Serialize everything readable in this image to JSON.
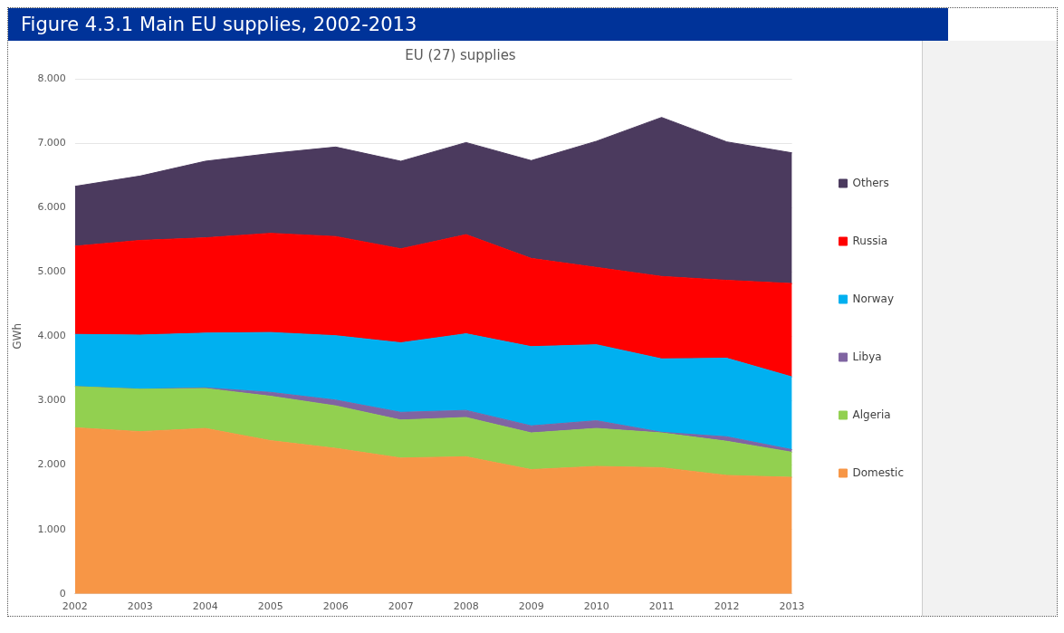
{
  "chart_data": {
    "type": "area",
    "title": "Figure 4.3.1 Main EU supplies, 2002-2013",
    "subtitle": "EU (27) supplies",
    "ylabel": "GWh",
    "stacked": true,
    "categories": [
      "2002",
      "2003",
      "2004",
      "2005",
      "2006",
      "2007",
      "2008",
      "2009",
      "2010",
      "2011",
      "2012",
      "2013"
    ],
    "series": [
      {
        "name": "Domestic",
        "color": "#f79646",
        "values": [
          2580,
          2520,
          2570,
          2380,
          2260,
          2110,
          2130,
          1930,
          1980,
          1960,
          1840,
          1810
        ]
      },
      {
        "name": "Algeria",
        "color": "#92d050",
        "values": [
          640,
          660,
          620,
          690,
          660,
          590,
          610,
          570,
          590,
          540,
          530,
          390
        ]
      },
      {
        "name": "Libya",
        "color": "#8064a2",
        "values": [
          0,
          0,
          10,
          60,
          90,
          120,
          110,
          110,
          120,
          10,
          70,
          40
        ]
      },
      {
        "name": "Norway",
        "color": "#00b0f0",
        "values": [
          810,
          840,
          850,
          930,
          1000,
          1080,
          1190,
          1230,
          1180,
          1140,
          1220,
          1130
        ]
      },
      {
        "name": "Russia",
        "color": "#ff0000",
        "values": [
          1370,
          1470,
          1480,
          1540,
          1540,
          1460,
          1540,
          1370,
          1200,
          1280,
          1210,
          1450
        ]
      },
      {
        "name": "Others",
        "color": "#4b3a5e",
        "values": [
          930,
          1000,
          1190,
          1240,
          1390,
          1360,
          1430,
          1520,
          1960,
          2470,
          2150,
          2030
        ]
      }
    ],
    "ylim": [
      0,
      8000
    ],
    "yticks": [
      {
        "value": 0,
        "label": "0"
      },
      {
        "value": 1000,
        "label": "1.000"
      },
      {
        "value": 2000,
        "label": "2.000"
      },
      {
        "value": 3000,
        "label": "3.000"
      },
      {
        "value": 4000,
        "label": "4.000"
      },
      {
        "value": 5000,
        "label": "5.000"
      },
      {
        "value": 6000,
        "label": "6.000"
      },
      {
        "value": 7000,
        "label": "7.000"
      },
      {
        "value": 8000,
        "label": "8.000"
      }
    ],
    "grid": "y",
    "legend": "right"
  }
}
